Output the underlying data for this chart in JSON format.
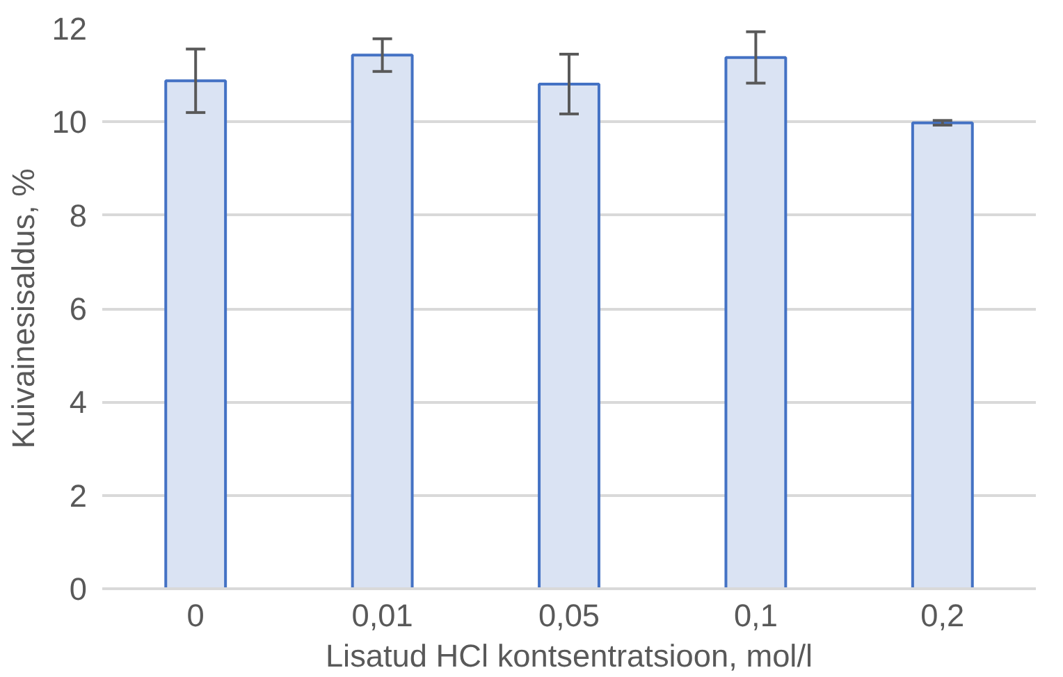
{
  "chart_data": {
    "type": "bar",
    "xlabel": "Lisatud HCl kontsentratsioon, mol/l",
    "ylabel": "Kuivainesisaldus, %",
    "categories": [
      "0",
      "0,01",
      "0,05",
      "0,1",
      "0,2"
    ],
    "values": [
      10.88,
      11.43,
      10.81,
      11.38,
      9.98
    ],
    "errors": [
      0.68,
      0.35,
      0.64,
      0.55,
      0.05
    ],
    "color": "#dae3f3",
    "ylim": [
      0,
      12
    ],
    "yticks": [
      0,
      2,
      4,
      6,
      8,
      10,
      12
    ],
    "grid": "y"
  }
}
